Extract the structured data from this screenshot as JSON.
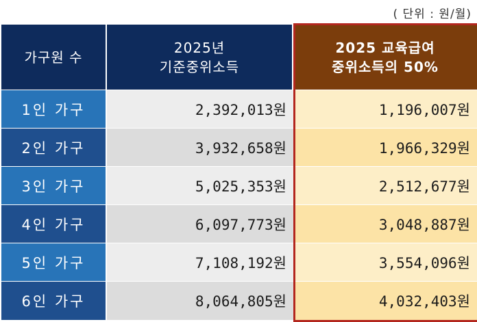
{
  "unit_note": "( 단위 : 원/월)",
  "header": {
    "col1": "가구원 수",
    "col2_line1": "2025년",
    "col2_line2": "기준중위소득",
    "col3_line1": "2025 교육급여",
    "col3_line2": "중위소득의 50%"
  },
  "rows": [
    {
      "household": "1인 가구",
      "median_income": "2,392,013원",
      "edu_benefit": "1,196,007원"
    },
    {
      "household": "2인 가구",
      "median_income": "3,932,658원",
      "edu_benefit": "1,966,329원"
    },
    {
      "household": "3인 가구",
      "median_income": "5,025,353원",
      "edu_benefit": "2,512,677원"
    },
    {
      "household": "4인 가구",
      "median_income": "6,097,773원",
      "edu_benefit": "3,048,887원"
    },
    {
      "household": "5인 가구",
      "median_income": "7,108,192원",
      "edu_benefit": "3,554,096원"
    },
    {
      "household": "6인 가구",
      "median_income": "8,064,805원",
      "edu_benefit": "4,032,403원"
    }
  ],
  "colors": {
    "header_navy": "#0e2b5c",
    "header_brown": "#7b3d0c",
    "highlight_border": "#b3261e"
  }
}
